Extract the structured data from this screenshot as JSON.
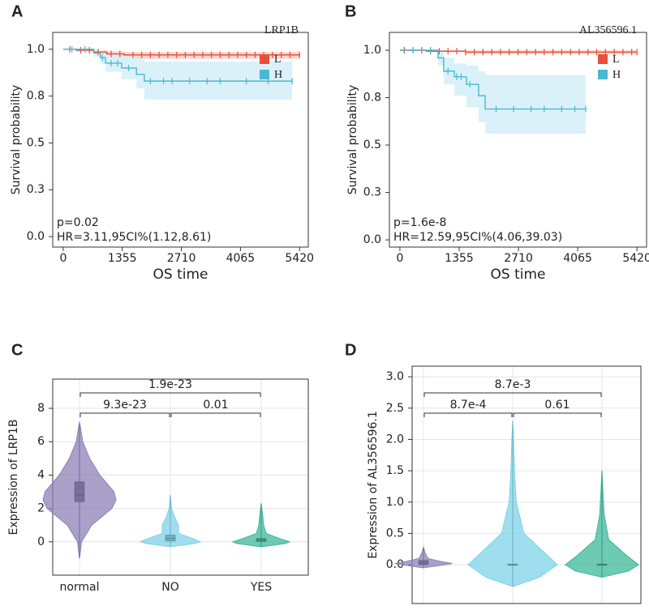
{
  "chart_data": [
    {
      "type": "survival",
      "label": "A",
      "xlabel": "OS time",
      "ylabel": "Survival probability",
      "xlim": [
        -240,
        5620
      ],
      "xticks": [
        0,
        1355,
        2710,
        4065,
        5420
      ],
      "ylim": [
        -0.056,
        1.09
      ],
      "yticks": [
        {
          "value": 0,
          "label": "0.0"
        },
        {
          "value": 0.25,
          "label": "0.3"
        },
        0.5,
        {
          "value": 0.75,
          "label": "0.8"
        },
        {
          "value": 1,
          "label": "1.0"
        }
      ],
      "legend_title": "LRP1B",
      "annotations": [
        "p=0.02",
        "HR=3.11,95CI%(1.12,8.61)"
      ],
      "series": [
        {
          "name": "L",
          "color": "#e8503a",
          "band_color": "#f8cfc6",
          "x": [
            0,
            300,
            700,
            1000,
            1400,
            5420
          ],
          "values": [
            1,
            0.995,
            0.985,
            0.975,
            0.97,
            0.97
          ],
          "lower": [
            1,
            0.99,
            0.975,
            0.96,
            0.95,
            0.95
          ],
          "upper": [
            1,
            1,
            0.995,
            0.99,
            0.985,
            0.985
          ],
          "censored": [
            150,
            400,
            600,
            800,
            1100,
            1300,
            1600,
            1800,
            2000,
            2200,
            2400,
            2600,
            2800,
            3000,
            3200,
            3400,
            3600,
            3800,
            4000,
            4200,
            4400,
            4600,
            4800,
            5000,
            5200,
            5420
          ]
        },
        {
          "name": "H",
          "color": "#4ab8d2",
          "band_color": "#d5eff8",
          "x": [
            0,
            700,
            850,
            970,
            1340,
            1680,
            1860,
            5250
          ],
          "values": [
            1,
            0.98,
            0.955,
            0.926,
            0.9,
            0.866,
            0.83,
            0.83
          ],
          "lower": [
            1,
            0.96,
            0.92,
            0.88,
            0.84,
            0.79,
            0.73,
            0.73
          ],
          "upper": [
            1,
            1,
            0.99,
            0.975,
            0.965,
            0.95,
            0.935,
            0.935
          ],
          "censored": [
            200,
            500,
            900,
            1100,
            1250,
            1500,
            2000,
            2300,
            2500,
            2900,
            3300,
            3600,
            4200,
            4700,
            5250
          ]
        }
      ]
    },
    {
      "type": "survival",
      "label": "B",
      "xlabel": "OS time",
      "ylabel": "Survival probability",
      "xlim": [
        -240,
        5640
      ],
      "xticks": [
        0,
        1355,
        2710,
        4065,
        5420
      ],
      "ylim": [
        -0.038,
        1.094
      ],
      "yticks": [
        {
          "value": 0,
          "label": "0.0"
        },
        {
          "value": 0.25,
          "label": "0.3"
        },
        0.5,
        {
          "value": 0.75,
          "label": "0.8"
        },
        {
          "value": 1,
          "label": "1.0"
        }
      ],
      "legend_title": "AL356596.1",
      "annotations": [
        "p=1.6e-8",
        "HR=12.59,95CI%(4.06,39.03)"
      ],
      "series": [
        {
          "name": "L",
          "color": "#e8503a",
          "band_color": "#f8cfc6",
          "x": [
            0,
            600,
            1500,
            5420
          ],
          "values": [
            1,
            0.995,
            0.99,
            0.99
          ],
          "lower": [
            1,
            0.99,
            0.98,
            0.98
          ],
          "upper": [
            1,
            1,
            1,
            1
          ],
          "censored": [
            100,
            300,
            500,
            700,
            900,
            1100,
            1300,
            1500,
            1700,
            1900,
            2100,
            2300,
            2500,
            2700,
            2900,
            3100,
            3300,
            3500,
            3700,
            3900,
            4100,
            4300,
            4500,
            4700,
            4900,
            5100,
            5300,
            5420
          ]
        },
        {
          "name": "H",
          "color": "#4ab8d2",
          "band_color": "#d5eff8",
          "x": [
            0,
            870,
            1000,
            1245,
            1520,
            1800,
            1950,
            4250
          ],
          "values": [
            1,
            0.96,
            0.89,
            0.86,
            0.82,
            0.76,
            0.69,
            0.69
          ],
          "lower": [
            1,
            0.92,
            0.82,
            0.76,
            0.7,
            0.62,
            0.56,
            0.56
          ],
          "upper": [
            1,
            1,
            0.96,
            0.93,
            0.92,
            0.89,
            0.87,
            0.87
          ],
          "censored": [
            300,
            700,
            1100,
            1300,
            1400,
            1600,
            2200,
            2600,
            3000,
            3300,
            3700,
            4000,
            4250
          ]
        }
      ]
    },
    {
      "type": "violin",
      "label": "C",
      "ylabel": "Expression of LRP1B",
      "grid": true,
      "categories": [
        "normal",
        "NO",
        "YES"
      ],
      "ylim": [
        -2.0,
        9.75
      ],
      "yticks": [
        0,
        2,
        4,
        6,
        8
      ],
      "series": [
        {
          "color": "#8e80b8",
          "kde_y": [
            -1,
            0,
            1,
            2,
            2.5,
            3,
            4,
            5,
            6,
            7.2
          ],
          "kde_w": [
            0,
            0.05,
            0.3,
            0.8,
            0.9,
            0.85,
            0.5,
            0.25,
            0.08,
            0
          ],
          "min": -1,
          "q1": 2.4,
          "median": 2.8,
          "q3": 3.6,
          "max": 7
        },
        {
          "color": "#7fd3e8",
          "kde_y": [
            -0.3,
            -0.1,
            0,
            0.2,
            0.5,
            1,
            1.5,
            2,
            2.8
          ],
          "kde_w": [
            0,
            0.6,
            0.74,
            0.55,
            0.2,
            0.2,
            0.1,
            0.03,
            0
          ],
          "min": -0.3,
          "q1": 0.05,
          "median": 0.2,
          "q3": 0.4,
          "max": 2.8
        },
        {
          "color": "#3cb89a",
          "kde_y": [
            -0.3,
            -0.1,
            0,
            0.2,
            0.5,
            1,
            1.5,
            2.3
          ],
          "kde_w": [
            0,
            0.6,
            0.7,
            0.45,
            0.12,
            0.06,
            0.04,
            0
          ],
          "min": -0.3,
          "q1": 0.02,
          "median": 0.1,
          "q3": 0.2,
          "max": 2.3
        }
      ],
      "comparisons": [
        {
          "groups": [
            0,
            1
          ],
          "label": "9.3e-23"
        },
        {
          "groups": [
            1,
            2
          ],
          "label": "0.01"
        },
        {
          "groups": [
            0,
            2
          ],
          "label": "1.9e-23"
        }
      ]
    },
    {
      "type": "violin",
      "label": "D",
      "ylabel": "Expression of AL356596.1",
      "grid": true,
      "categories": [
        "normal",
        "NO",
        "YES"
      ],
      "ylim": [
        -0.62,
        3.17
      ],
      "yticks": [
        {
          "value": 0,
          "label": "0.0"
        },
        0.5,
        {
          "value": 1,
          "label": "1.0"
        },
        1.5,
        {
          "value": 2,
          "label": "2.0"
        },
        2.5,
        {
          "value": 3,
          "label": "3.0"
        }
      ],
      "series": [
        {
          "color": "#8e80b8",
          "kde_y": [
            -0.05,
            0,
            0.02,
            0.05,
            0.1,
            0.2,
            0.28
          ],
          "kde_w": [
            0,
            0.5,
            0.64,
            0.4,
            0.1,
            0.03,
            0
          ],
          "min": -0.05,
          "q1": 0.0,
          "median": 0.03,
          "q3": 0.07,
          "max": 0.28
        },
        {
          "color": "#7fd3e8",
          "kde_y": [
            -0.35,
            -0.2,
            0,
            0.2,
            0.5,
            1,
            1.5,
            2,
            2.3
          ],
          "kde_w": [
            0,
            0.6,
            1,
            0.7,
            0.25,
            0.08,
            0.04,
            0.02,
            0
          ],
          "min": -0.35,
          "q1": 0,
          "median": 0,
          "q3": 0.01,
          "max": 2.3
        },
        {
          "color": "#3cb89a",
          "kde_y": [
            -0.2,
            -0.1,
            0,
            0.15,
            0.4,
            0.8,
            1.2,
            1.5
          ],
          "kde_w": [
            0,
            0.6,
            0.82,
            0.55,
            0.15,
            0.05,
            0.02,
            0
          ],
          "min": -0.2,
          "q1": 0,
          "median": 0,
          "q3": 0.01,
          "max": 1.5
        }
      ],
      "comparisons": [
        {
          "groups": [
            0,
            1
          ],
          "label": "8.7e-4"
        },
        {
          "groups": [
            1,
            2
          ],
          "label": "0.61"
        },
        {
          "groups": [
            0,
            2
          ],
          "label": "8.7e-3"
        }
      ]
    }
  ]
}
